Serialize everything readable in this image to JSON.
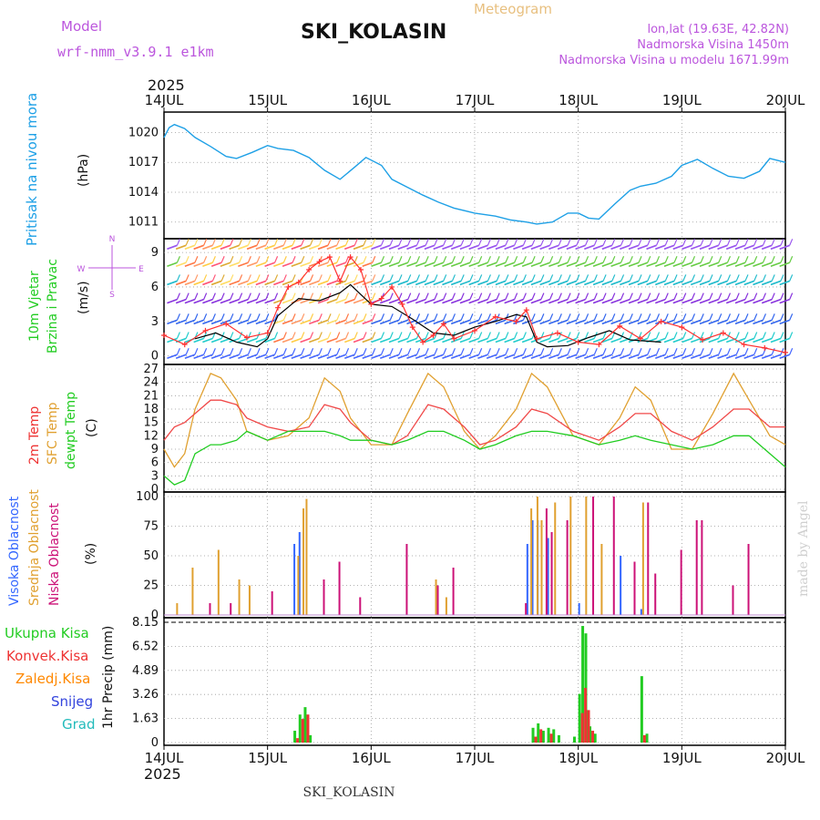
{
  "header": {
    "model_label": "Model",
    "model_name": "wrf-nmm_v3.9.1 e1km",
    "product": "Meteogram",
    "station": "SKI_KOLASIN",
    "lonlat": "lon,lat (19.63E, 42.82N)",
    "altitude": "Nadmorska Visina 1450m",
    "model_altitude": "Nadmorska Visina u modelu 1671.99m",
    "year": "2025",
    "footer_station": "SKI_KOLASIN",
    "credit": "made by Angel"
  },
  "colors": {
    "pressure": "#1ea0e6",
    "wind_black": "#000000",
    "wind_red": "#ff3030",
    "t2m": "#f04848",
    "tsfc": "#e0a030",
    "dew": "#20cc20",
    "cloud_high": "#3366ff",
    "cloud_mid": "#e0a030",
    "cloud_low": "#cc1177",
    "prec_total": "#22cc22",
    "prec_conv": "#ee3333",
    "prec_frozen": "#ff8800",
    "prec_snow": "#3344dd",
    "prec_graupel": "#22bbbb",
    "title_purple": "#bb55dd"
  },
  "chart_data": [
    {
      "type": "line",
      "title": "Pritisak na nivou mora",
      "ylabel": "(hPa)",
      "yticks": [
        "1020",
        "1017",
        "1014",
        "1011"
      ],
      "ylim": [
        1009.6,
        1021.6
      ],
      "xticks": [
        "14JUL",
        "15JUL",
        "16JUL",
        "17JUL",
        "18JUL",
        "19JUL",
        "20JUL"
      ],
      "series": [
        {
          "name": "Pritisak na nivou mora",
          "x": [
            0,
            0.05,
            0.1,
            0.2,
            0.3,
            0.45,
            0.6,
            0.7,
            0.85,
            1.0,
            1.1,
            1.25,
            1.4,
            1.55,
            1.7,
            1.85,
            1.95,
            2.1,
            2.2,
            2.35,
            2.5,
            2.65,
            2.8,
            3.0,
            3.2,
            3.35,
            3.5,
            3.6,
            3.75,
            3.9,
            4.0,
            4.1,
            4.2,
            4.35,
            4.5,
            4.6,
            4.75,
            4.9,
            5.0,
            5.15,
            5.3,
            5.45,
            5.6,
            5.75,
            5.85,
            6.0
          ],
          "values": [
            1019.5,
            1020.5,
            1020.8,
            1020.4,
            1019.5,
            1018.6,
            1017.6,
            1017.4,
            1018.0,
            1018.7,
            1018.4,
            1018.2,
            1017.5,
            1016.2,
            1015.3,
            1016.6,
            1017.5,
            1016.7,
            1015.3,
            1014.5,
            1013.7,
            1013.0,
            1012.4,
            1011.9,
            1011.6,
            1011.2,
            1011.0,
            1010.8,
            1011.0,
            1011.9,
            1011.9,
            1011.4,
            1011.3,
            1012.8,
            1014.2,
            1014.6,
            1014.9,
            1015.6,
            1016.7,
            1017.3,
            1016.4,
            1015.6,
            1015.4,
            1016.1,
            1017.4,
            1017.0
          ]
        }
      ]
    },
    {
      "type": "line",
      "title": "10m Vjetar Brzina i Pravac",
      "ylabel": "(m/s)",
      "yticks": [
        "9",
        "6",
        "3",
        "0"
      ],
      "ylim": [
        -0.5,
        9.8
      ],
      "compass": [
        "N",
        "S",
        "W",
        "E"
      ],
      "series": [
        {
          "name": "wind_black",
          "x": [
            0.3,
            0.5,
            0.7,
            0.9,
            1.0,
            1.1,
            1.3,
            1.5,
            1.7,
            1.8,
            2.0,
            2.2,
            2.4,
            2.6,
            2.8,
            3.0,
            3.2,
            3.4,
            3.5,
            3.6,
            3.7,
            3.9,
            4.1,
            4.3,
            4.5,
            4.8
          ],
          "values": [
            1.5,
            2.0,
            1.2,
            0.8,
            1.5,
            3.5,
            5.0,
            4.8,
            5.5,
            6.2,
            4.5,
            4.3,
            3.2,
            2.0,
            1.8,
            2.5,
            3.0,
            3.6,
            3.4,
            1.2,
            0.8,
            0.9,
            1.6,
            2.2,
            1.4,
            1.2
          ]
        },
        {
          "name": "wind_red",
          "x": [
            0.0,
            0.2,
            0.4,
            0.6,
            0.8,
            1.0,
            1.1,
            1.2,
            1.3,
            1.4,
            1.5,
            1.6,
            1.7,
            1.8,
            1.9,
            2.0,
            2.1,
            2.2,
            2.3,
            2.4,
            2.5,
            2.6,
            2.7,
            2.8,
            3.0,
            3.2,
            3.4,
            3.5,
            3.6,
            3.8,
            4.0,
            4.2,
            4.4,
            4.6,
            4.8,
            5.0,
            5.2,
            5.4,
            5.6,
            5.8,
            6.0
          ],
          "values": [
            1.8,
            1.0,
            2.2,
            2.8,
            1.6,
            2.0,
            4.2,
            6.0,
            6.4,
            7.5,
            8.2,
            8.6,
            6.5,
            8.6,
            7.5,
            4.5,
            5.0,
            6.0,
            4.5,
            2.5,
            1.2,
            1.8,
            2.8,
            1.5,
            2.2,
            3.4,
            3.0,
            4.0,
            1.5,
            2.0,
            1.2,
            1.0,
            2.6,
            1.5,
            3.0,
            2.5,
            1.4,
            2.0,
            1.0,
            0.7,
            0.3
          ]
        }
      ]
    },
    {
      "type": "line",
      "title": "2m Temp / SFC Temp / dewpt Temp",
      "ylabel": "(C)",
      "yticks": [
        "27",
        "24",
        "21",
        "18",
        "15",
        "12",
        "9",
        "6",
        "3",
        "0"
      ],
      "ylim": [
        0,
        27
      ],
      "series": [
        {
          "name": "2m Temp",
          "x": [
            0,
            0.1,
            0.2,
            0.3,
            0.45,
            0.55,
            0.7,
            0.8,
            1.0,
            1.2,
            1.4,
            1.55,
            1.7,
            1.8,
            2.0,
            2.2,
            2.35,
            2.55,
            2.7,
            2.9,
            3.05,
            3.2,
            3.4,
            3.55,
            3.7,
            3.95,
            4.2,
            4.4,
            4.55,
            4.7,
            4.9,
            5.1,
            5.3,
            5.5,
            5.65,
            5.85,
            6.0
          ],
          "values": [
            11,
            14,
            15,
            17,
            20,
            20,
            19,
            16,
            14,
            13,
            14,
            19,
            18,
            15,
            11,
            10,
            12,
            19,
            18,
            14,
            10,
            11,
            14,
            18,
            17,
            13,
            11,
            14,
            17,
            17,
            13,
            11,
            14,
            18,
            18,
            14,
            14
          ]
        },
        {
          "name": "SFC Temp",
          "x": [
            0,
            0.1,
            0.2,
            0.3,
            0.45,
            0.55,
            0.7,
            0.8,
            1.0,
            1.2,
            1.4,
            1.55,
            1.7,
            1.8,
            2.0,
            2.2,
            2.35,
            2.55,
            2.7,
            2.9,
            3.05,
            3.2,
            3.4,
            3.55,
            3.7,
            3.95,
            4.2,
            4.4,
            4.55,
            4.7,
            4.9,
            5.1,
            5.3,
            5.5,
            5.65,
            5.85,
            6.0
          ],
          "values": [
            9,
            5,
            8,
            18,
            26,
            25,
            20,
            13,
            11,
            12,
            16,
            25,
            22,
            16,
            10,
            10,
            17,
            26,
            23,
            13,
            9,
            12,
            18,
            26,
            23,
            12,
            10,
            16,
            23,
            20,
            9,
            9,
            17,
            26,
            20,
            12,
            10
          ]
        },
        {
          "name": "dewpt Temp",
          "x": [
            0,
            0.1,
            0.2,
            0.3,
            0.45,
            0.55,
            0.7,
            0.8,
            1.0,
            1.2,
            1.4,
            1.55,
            1.7,
            1.8,
            2.0,
            2.2,
            2.35,
            2.55,
            2.7,
            2.9,
            3.05,
            3.2,
            3.4,
            3.55,
            3.7,
            3.95,
            4.2,
            4.4,
            4.55,
            4.7,
            4.9,
            5.1,
            5.3,
            5.5,
            5.65,
            5.85,
            6.0
          ],
          "values": [
            3,
            1,
            2,
            8,
            10,
            10,
            11,
            13,
            11,
            13,
            13,
            13,
            12,
            11,
            11,
            10,
            11,
            13,
            13,
            11,
            9,
            10,
            12,
            13,
            13,
            12,
            10,
            11,
            12,
            11,
            10,
            9,
            10,
            12,
            12,
            8,
            5
          ]
        }
      ]
    },
    {
      "type": "bar",
      "title": "Visoka Oblacnost / Srednja Oblacnost / Niska Oblacnost",
      "ylabel": "(%)",
      "yticks": [
        "100",
        "75",
        "50",
        "25",
        "0"
      ],
      "ylim": [
        0,
        100
      ],
      "series": [
        {
          "name": "Visoka Oblacnost",
          "x": [
            1.25,
            1.3,
            3.5,
            3.55,
            3.6,
            3.7,
            4.0,
            4.4,
            4.6
          ],
          "values": [
            60,
            70,
            60,
            80,
            80,
            65,
            10,
            50,
            5
          ]
        },
        {
          "name": "Srednja Oblacnost",
          "x": [
            0.1,
            0.25,
            0.5,
            0.7,
            0.8,
            1.27,
            1.32,
            1.35,
            2.6,
            2.7,
            3.52,
            3.58,
            3.62,
            3.75,
            3.9,
            4.05,
            4.2,
            4.6
          ],
          "values": [
            10,
            40,
            55,
            30,
            25,
            50,
            90,
            98,
            30,
            15,
            90,
            100,
            80,
            95,
            100,
            100,
            60,
            95
          ]
        },
        {
          "name": "Niska Oblacnost",
          "x": [
            0.4,
            0.6,
            1.0,
            1.5,
            1.65,
            1.85,
            2.3,
            2.6,
            2.75,
            3.45,
            3.65,
            3.7,
            3.85,
            4.1,
            4.3,
            4.5,
            4.63,
            4.7,
            4.95,
            5.1,
            5.15,
            5.45,
            5.6
          ],
          "values": [
            10,
            10,
            20,
            30,
            45,
            15,
            60,
            25,
            40,
            10,
            90,
            70,
            80,
            100,
            100,
            45,
            95,
            35,
            55,
            80,
            80,
            25,
            60
          ]
        }
      ]
    },
    {
      "type": "bar",
      "title": "1hr Precip (mm)",
      "ylabel": "1hr Precip (mm)",
      "yticks": [
        "8.15",
        "6.52",
        "4.89",
        "3.26",
        "1.63",
        "0"
      ],
      "ylim": [
        0,
        8.15
      ],
      "legend": [
        "Ukupna Kisa",
        "Konvek.Kisa",
        "Zaledj.Kisa",
        "Snijeg",
        "Grad"
      ],
      "series": [
        {
          "name": "Ukupna Kisa",
          "x": [
            1.25,
            1.3,
            1.35,
            1.4,
            3.55,
            3.6,
            3.65,
            3.7,
            3.75,
            3.8,
            3.95,
            4.0,
            4.03,
            4.06,
            4.1,
            4.15,
            4.6,
            4.65
          ],
          "values": [
            0.8,
            1.9,
            2.4,
            0.5,
            1.0,
            1.3,
            0.8,
            1.0,
            0.9,
            0.5,
            0.4,
            3.3,
            7.9,
            7.4,
            1.1,
            0.6,
            4.5,
            0.6
          ]
        },
        {
          "name": "Konvek.Kisa",
          "x": [
            1.25,
            1.3,
            1.35,
            3.55,
            3.6,
            3.7,
            4.0,
            4.03,
            4.06,
            4.1,
            4.6
          ],
          "values": [
            0.3,
            1.6,
            1.9,
            0.4,
            0.9,
            0.6,
            2.0,
            3.7,
            2.2,
            0.8,
            0.5
          ]
        }
      ]
    }
  ]
}
